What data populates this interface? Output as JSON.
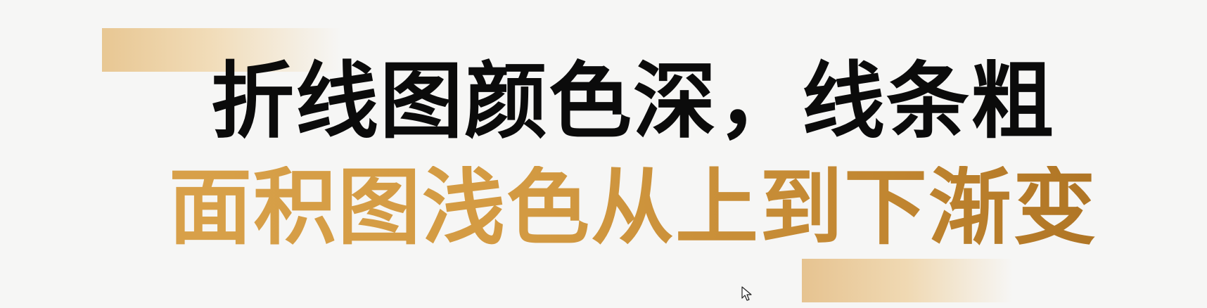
{
  "slide": {
    "line1": "折线图颜色深，线条粗",
    "line2": "面积图浅色从上到下渐变"
  },
  "colors": {
    "background": "#f6f6f5",
    "line1_text": "#0b0b0b",
    "line2_text_start": "#d9a24b",
    "line2_text_end": "#a96f20",
    "accent_bar": "#e8c793"
  },
  "icons": {
    "pointer": "mouse-cursor-icon"
  }
}
